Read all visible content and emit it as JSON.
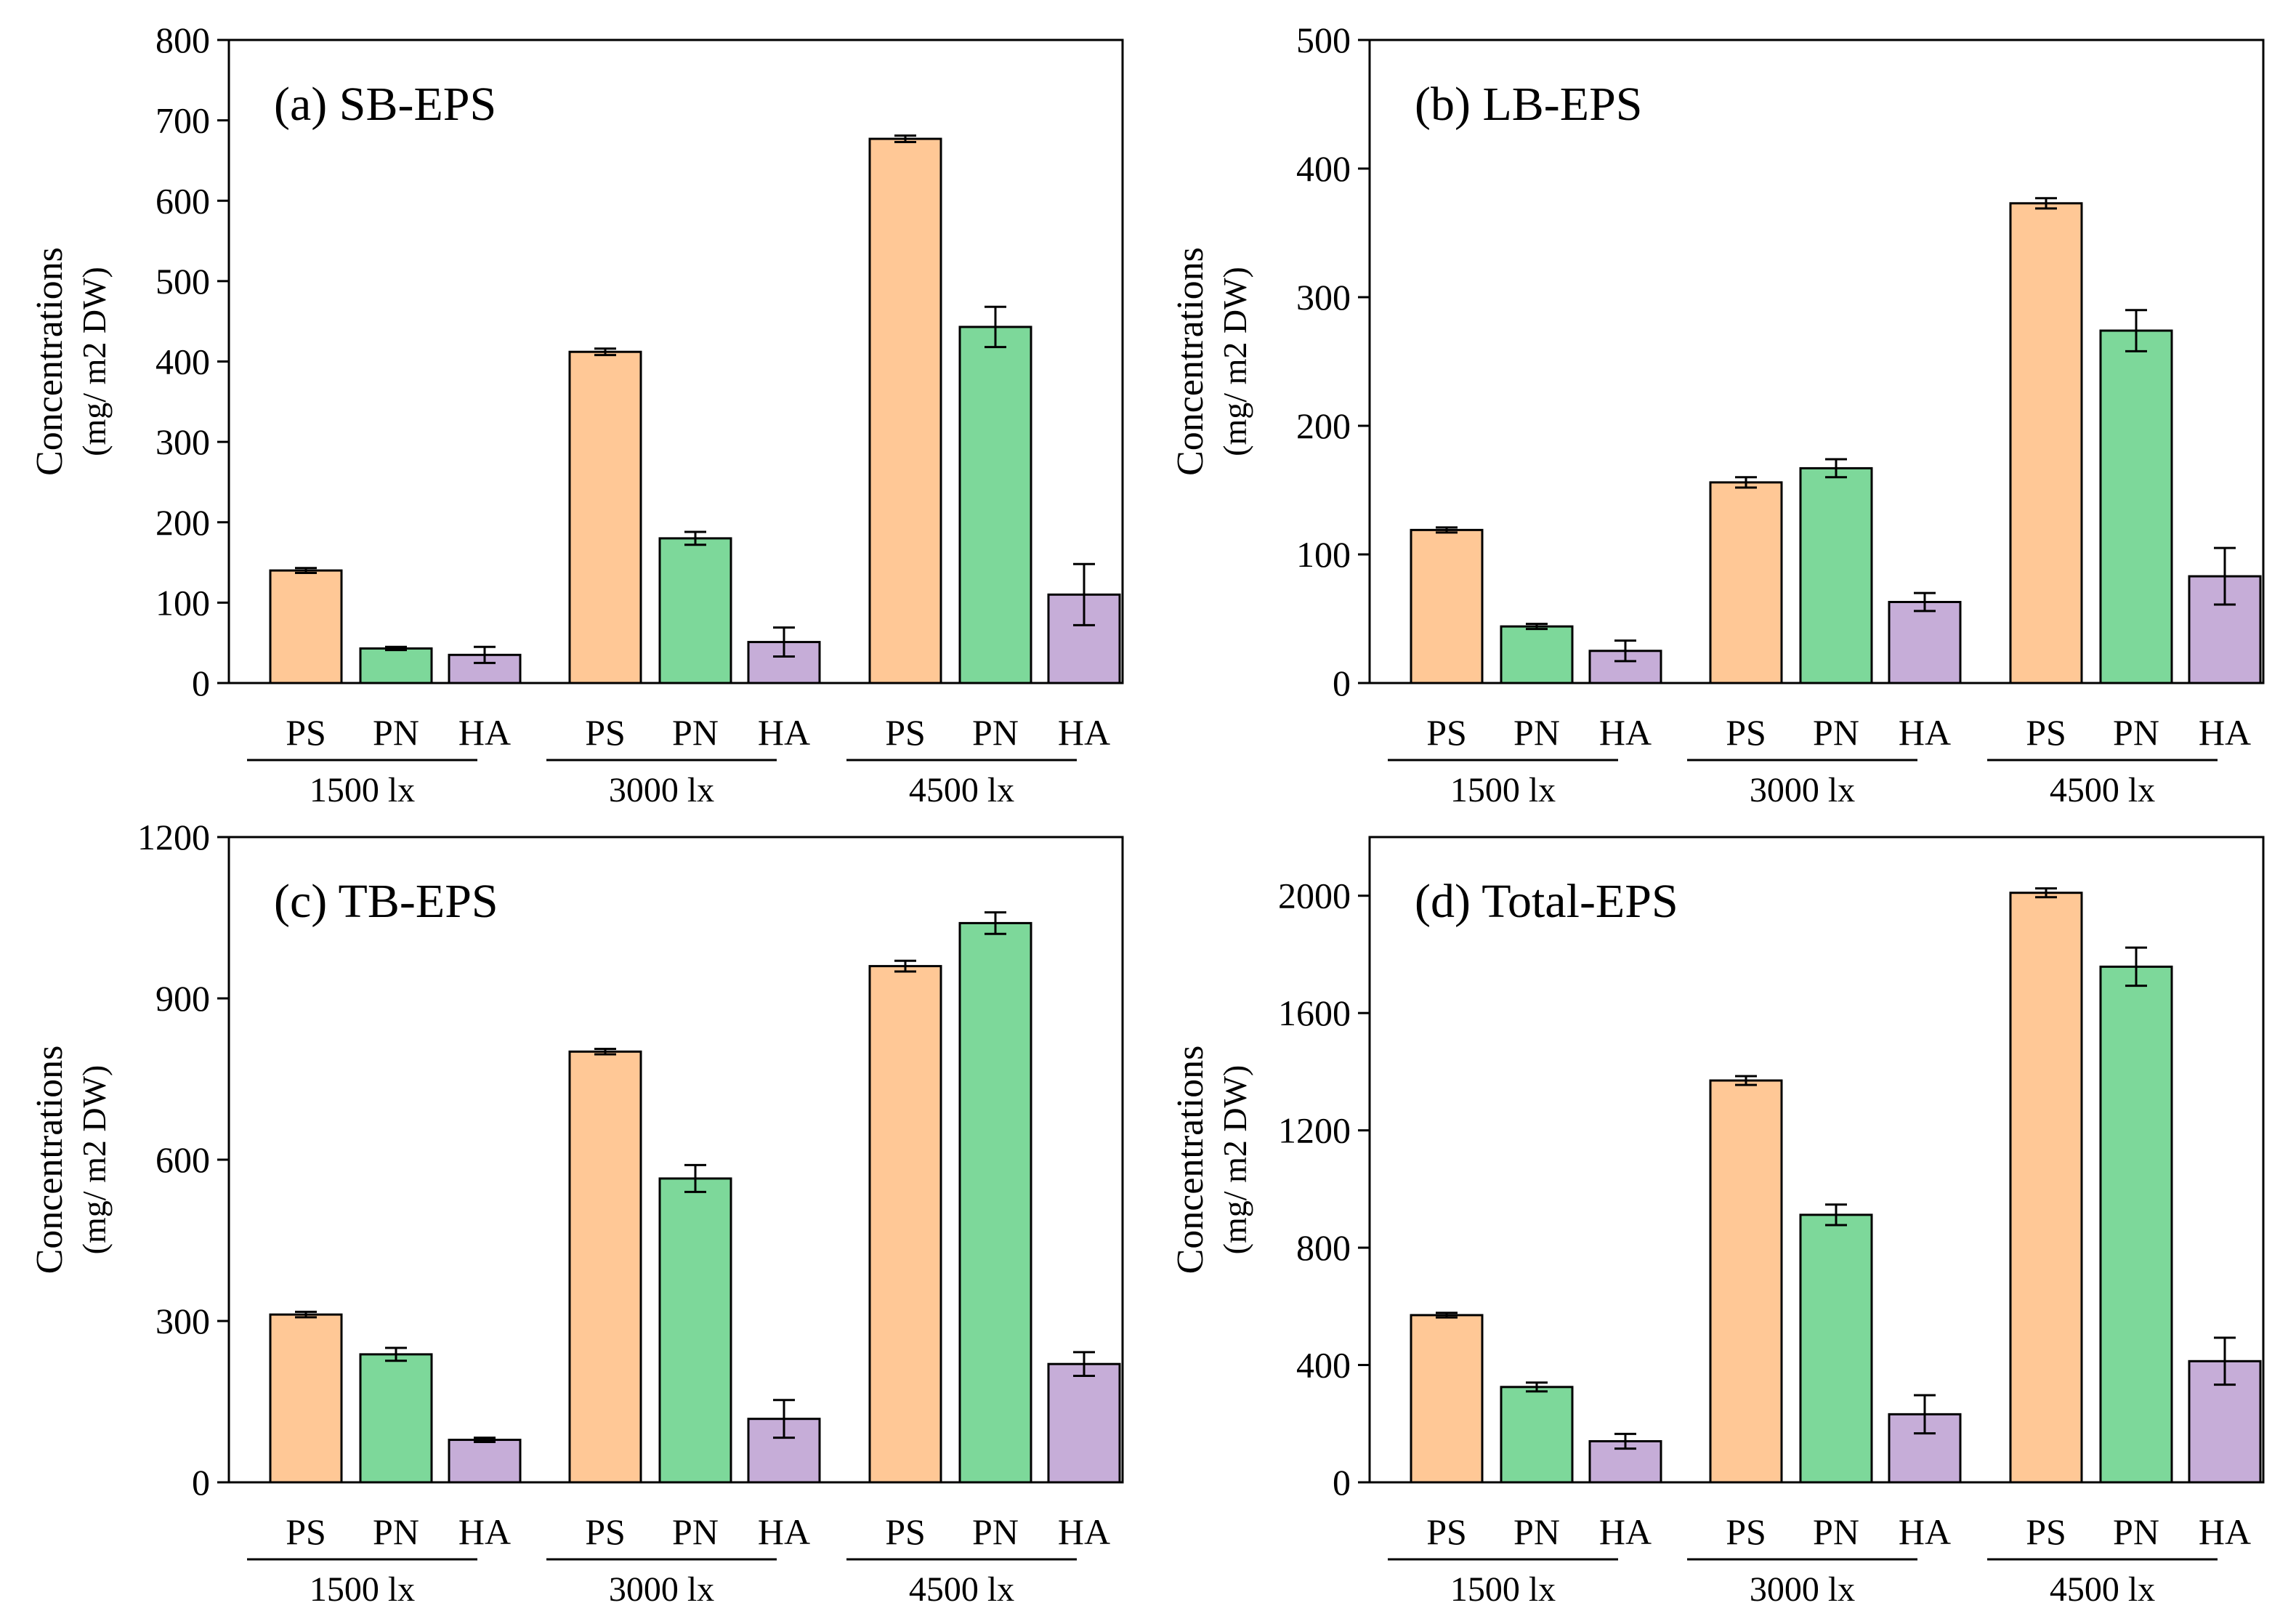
{
  "colors": {
    "PS": "#FFC896",
    "PN": "#7DD89A",
    "HA": "#C6ADD8",
    "stroke": "#000000"
  },
  "chart_data": [
    {
      "type": "bar",
      "title": "(a) SB-EPS",
      "ylabel": "Concentrations",
      "ylabel_unit": "(mg/ m2 DW)",
      "ylim": [
        0,
        800
      ],
      "yticks": [
        0,
        100,
        200,
        300,
        400,
        500,
        600,
        700,
        800
      ],
      "groups": [
        "1500 lx",
        "3000 lx",
        "4500 lx"
      ],
      "categories": [
        "PS",
        "PN",
        "HA"
      ],
      "series": [
        {
          "name": "PS",
          "values": [
            140,
            412,
            677
          ],
          "errors": [
            3,
            4,
            4
          ]
        },
        {
          "name": "PN",
          "values": [
            43,
            180,
            443
          ],
          "errors": [
            2,
            8,
            25
          ]
        },
        {
          "name": "HA",
          "values": [
            35,
            51,
            110
          ],
          "errors": [
            10,
            18,
            38
          ]
        }
      ]
    },
    {
      "type": "bar",
      "title": "(b) LB-EPS",
      "ylabel": "Concentrations",
      "ylabel_unit": "(mg/ m2 DW)",
      "ylim": [
        0,
        500
      ],
      "yticks": [
        0,
        100,
        200,
        300,
        400,
        500
      ],
      "groups": [
        "1500 lx",
        "3000 lx",
        "4500 lx"
      ],
      "categories": [
        "PS",
        "PN",
        "HA"
      ],
      "series": [
        {
          "name": "PS",
          "values": [
            119,
            156,
            373
          ],
          "errors": [
            2,
            4,
            4
          ]
        },
        {
          "name": "PN",
          "values": [
            44,
            167,
            274
          ],
          "errors": [
            2,
            7,
            16
          ]
        },
        {
          "name": "HA",
          "values": [
            25,
            63,
            83
          ],
          "errors": [
            8,
            7,
            22
          ]
        }
      ]
    },
    {
      "type": "bar",
      "title": "(c) TB-EPS",
      "ylabel": "Concentrations",
      "ylabel_unit": "(mg/ m2 DW)",
      "ylim": [
        0,
        1200
      ],
      "yticks": [
        0,
        300,
        600,
        900,
        1200
      ],
      "groups": [
        "1500 lx",
        "3000 lx",
        "4500 lx"
      ],
      "categories": [
        "PS",
        "PN",
        "HA"
      ],
      "series": [
        {
          "name": "PS",
          "values": [
            312,
            801,
            960
          ],
          "errors": [
            5,
            5,
            10
          ]
        },
        {
          "name": "PN",
          "values": [
            238,
            565,
            1040
          ],
          "errors": [
            12,
            25,
            20
          ]
        },
        {
          "name": "HA",
          "values": [
            79,
            118,
            220
          ],
          "errors": [
            4,
            35,
            22
          ]
        }
      ]
    },
    {
      "type": "bar",
      "title": "(d) Total-EPS",
      "ylabel": "Concentrations",
      "ylabel_unit": "(mg/ m2 DW)",
      "ylim": [
        0,
        2200
      ],
      "yticks": [
        0,
        400,
        800,
        1200,
        1600,
        2000
      ],
      "groups": [
        "1500 lx",
        "3000 lx",
        "4500 lx"
      ],
      "categories": [
        "PS",
        "PN",
        "HA"
      ],
      "series": [
        {
          "name": "PS",
          "values": [
            570,
            1370,
            2010
          ],
          "errors": [
            8,
            15,
            15
          ]
        },
        {
          "name": "PN",
          "values": [
            325,
            912,
            1758
          ],
          "errors": [
            15,
            35,
            65
          ]
        },
        {
          "name": "HA",
          "values": [
            140,
            232,
            413
          ],
          "errors": [
            25,
            65,
            80
          ]
        }
      ]
    }
  ]
}
